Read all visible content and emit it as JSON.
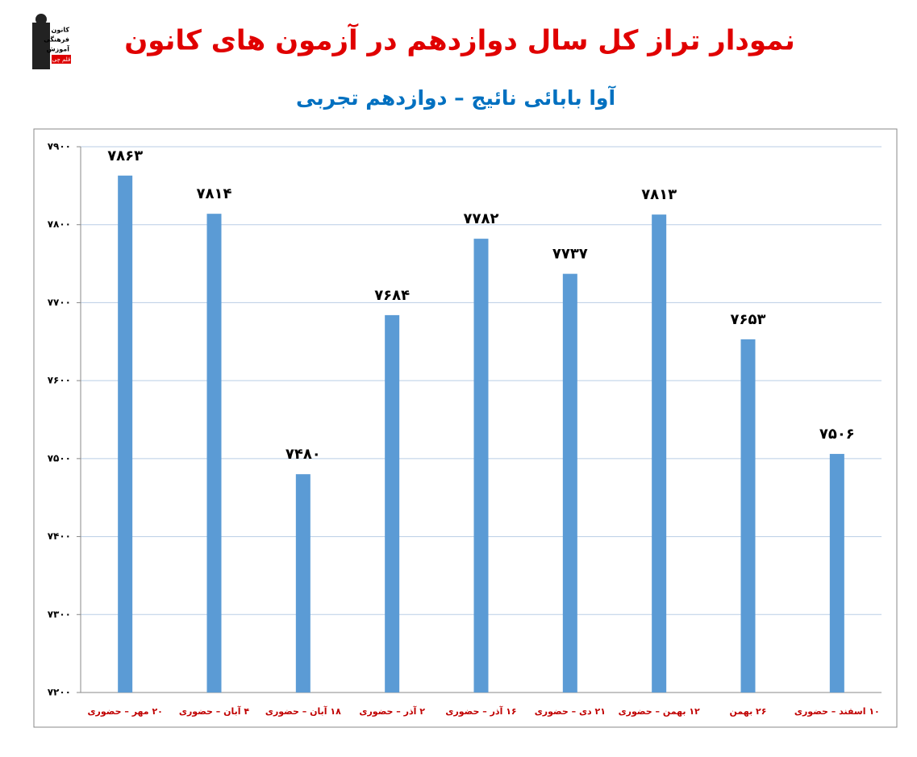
{
  "logo": [
    "کانون",
    "فرهنگی",
    "آموزش",
    "قلم چی"
  ],
  "chart_data": {
    "type": "bar",
    "title": "نمودار تراز کل سال دوازدهم در آزمون های کانون",
    "subtitle": "آوا بابائی نائیج – دوازدهم تجربی",
    "categories": [
      "۲۰ مهر – حضوری",
      "۴ آبان – حضوری",
      "۱۸ آبان – حضوری",
      "۲ آذر – حضوری",
      "۱۶ آذر – حضوری",
      "۲۱ دی – حضوری",
      "۱۲ بهمن – حضوری",
      "۲۶ بهمن",
      "۱۰ اسفند – حضوری"
    ],
    "values": [
      7863,
      7814,
      7480,
      7684,
      7782,
      7737,
      7813,
      7653,
      7506
    ],
    "value_labels": [
      "۷۸۶۳",
      "۷۸۱۴",
      "۷۴۸۰",
      "۷۶۸۴",
      "۷۷۸۲",
      "۷۷۳۷",
      "۷۸۱۳",
      "۷۶۵۳",
      "۷۵۰۶"
    ],
    "color": "#5b9bd5",
    "ylim": [
      7200,
      7900
    ],
    "yticks": [
      {
        "value": 7200,
        "label": "۷۲۰۰"
      },
      {
        "value": 7300,
        "label": "۷۳۰۰"
      },
      {
        "value": 7400,
        "label": "۷۴۰۰"
      },
      {
        "value": 7500,
        "label": "۷۵۰۰"
      },
      {
        "value": 7600,
        "label": "۷۶۰۰"
      },
      {
        "value": 7700,
        "label": "۷۷۰۰"
      },
      {
        "value": 7800,
        "label": "۷۸۰۰"
      },
      {
        "value": 7900,
        "label": "۷۹۰۰"
      }
    ],
    "grid": true
  }
}
